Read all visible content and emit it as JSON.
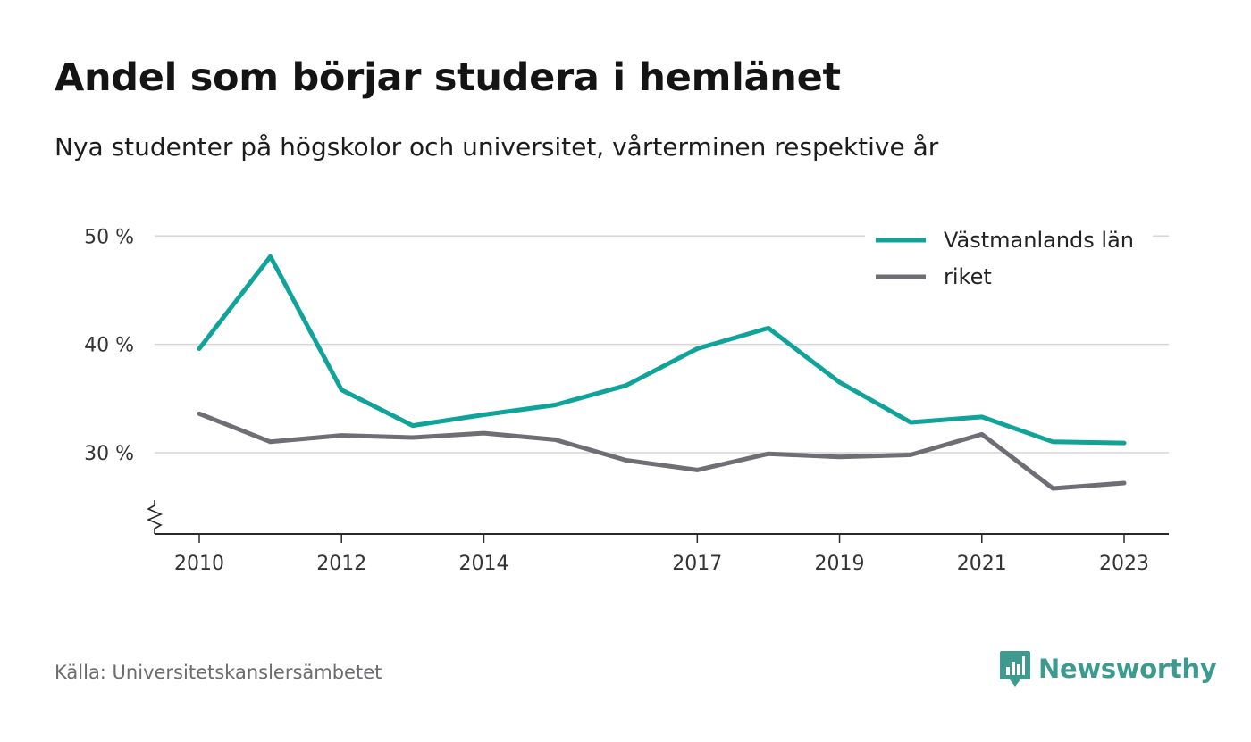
{
  "title": "Andel som börjar studera i hemlänet",
  "subtitle": "Nya studenter på högskolor och universitet, vårterminen respektive år",
  "source": "Källa: Universitetskanslersämbetet",
  "brand": {
    "name": "Newsworthy",
    "icon": "newsworthy-logo-icon",
    "color": "#3d9a8e"
  },
  "chart_data": {
    "type": "line",
    "x": [
      2010,
      2011,
      2012,
      2013,
      2014,
      2015,
      2016,
      2017,
      2018,
      2019,
      2020,
      2021,
      2022,
      2023
    ],
    "x_tick_labels": [
      "2010",
      "2012",
      "2014",
      "2017",
      "2019",
      "2021",
      "2023"
    ],
    "y_tick_labels": [
      "30 %",
      "40 %",
      "50 %"
    ],
    "y_ticks": [
      30,
      40,
      50
    ],
    "ylim": [
      22.5,
      52
    ],
    "y_axis_break": true,
    "grid": true,
    "legend_position": "top-right",
    "series": [
      {
        "name": "Västmanlands län",
        "color": "#0fa399",
        "values": [
          39.6,
          48.1,
          35.8,
          32.5,
          33.5,
          34.4,
          36.2,
          39.6,
          41.5,
          36.5,
          32.8,
          33.3,
          31.0,
          30.9
        ]
      },
      {
        "name": "riket",
        "color": "#6e6e75",
        "values": [
          33.6,
          31.0,
          31.6,
          31.4,
          31.8,
          31.2,
          29.3,
          28.4,
          29.9,
          29.6,
          29.8,
          31.7,
          26.7,
          27.2
        ]
      }
    ]
  }
}
